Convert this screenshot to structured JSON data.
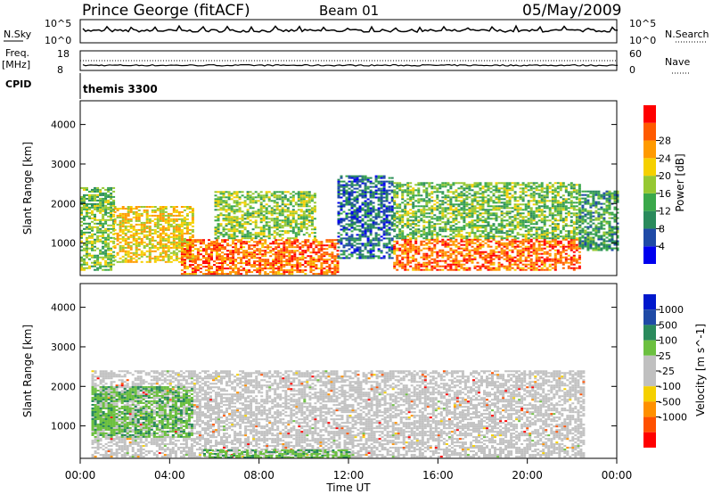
{
  "header": {
    "station": "Prince George (fitACF)",
    "beam": "Beam 01",
    "date": "05/May/2009"
  },
  "status_panels": {
    "nsky_label": "N.Sky",
    "nsky_ticks": [
      "10^5",
      "10^0"
    ],
    "nsearch_label": "N.Search",
    "nsearch_ticks": [
      "10^5",
      "10^0"
    ],
    "freq_label": "Freq.",
    "freq_unit": "[MHz]",
    "freq_ticks": [
      "18",
      "8"
    ],
    "nave_label": "Nave",
    "nave_ticks": [
      "60",
      "0"
    ],
    "cpid_label": "CPID",
    "cpid_value": "themis 3300"
  },
  "colors": {
    "power": [
      "#0000ee",
      "#1f4aa6",
      "#2a8a5c",
      "#3aa84a",
      "#96c832",
      "#f5d000",
      "#ff9a00",
      "#ff5a00",
      "#ff0000"
    ],
    "velocity": [
      "#0018cc",
      "#1f4aa6",
      "#2a8a5c",
      "#6cc040",
      "#c0c0c0",
      "#c0c0c0",
      "#f5d000",
      "#ff9000",
      "#ff5000",
      "#ff0000"
    ],
    "ground_scatter": "#c0c0c0"
  },
  "chart_data": [
    {
      "type": "heatmap",
      "panel": "power",
      "ylabel": "Slant Range [km]",
      "yticks": [
        "1000",
        "2000",
        "3000",
        "4000"
      ],
      "ylim": [
        180,
        4600
      ],
      "xlim": [
        "00:00",
        "24:00"
      ],
      "colorbar_label": "Power [dB]",
      "colorbar_ticks": [
        "4",
        "8",
        "12",
        "16",
        "20",
        "24",
        "28"
      ],
      "clim": [
        0,
        32
      ],
      "regions": [
        {
          "t": [
            0.0,
            1.5
          ],
          "range": [
            300,
            2400
          ],
          "level": 14
        },
        {
          "t": [
            1.5,
            5.0
          ],
          "range": [
            500,
            1900
          ],
          "level": 20
        },
        {
          "t": [
            4.5,
            11.5
          ],
          "range": [
            200,
            1100
          ],
          "level": 27
        },
        {
          "t": [
            6.0,
            10.5
          ],
          "range": [
            1100,
            2300
          ],
          "level": 15
        },
        {
          "t": [
            11.5,
            14.0
          ],
          "range": [
            600,
            2700
          ],
          "level": 6
        },
        {
          "t": [
            14.0,
            22.3
          ],
          "range": [
            300,
            1100
          ],
          "level": 27
        },
        {
          "t": [
            14.0,
            22.3
          ],
          "range": [
            1100,
            2500
          ],
          "level": 14
        },
        {
          "t": [
            22.3,
            24.0
          ],
          "range": [
            800,
            2300
          ],
          "level": 10
        }
      ]
    },
    {
      "type": "heatmap",
      "panel": "velocity",
      "ylabel": "Slant Range [km]",
      "yticks": [
        "1000",
        "2000",
        "3000",
        "4000"
      ],
      "ylim": [
        180,
        4600
      ],
      "xlim": [
        "00:00",
        "24:00"
      ],
      "xlabel": "Time UT",
      "xticks": [
        "00:00",
        "04:00",
        "08:00",
        "12:00",
        "16:00",
        "20:00",
        "00:00"
      ],
      "colorbar_label": "Velocity [m s^-1]",
      "colorbar_ticks": [
        "1000",
        "500",
        "100",
        "25",
        "-25",
        "-100",
        "-500",
        "-1000"
      ],
      "regions": [
        {
          "t": [
            0.5,
            22.5
          ],
          "range": [
            200,
            2400
          ],
          "value": 0,
          "note": "ground scatter"
        },
        {
          "t": [
            5.5,
            12.0
          ],
          "range": [
            180,
            400
          ],
          "value": 60
        },
        {
          "t": [
            0.5,
            5.0
          ],
          "range": [
            700,
            2000
          ],
          "value": 80
        }
      ]
    }
  ]
}
